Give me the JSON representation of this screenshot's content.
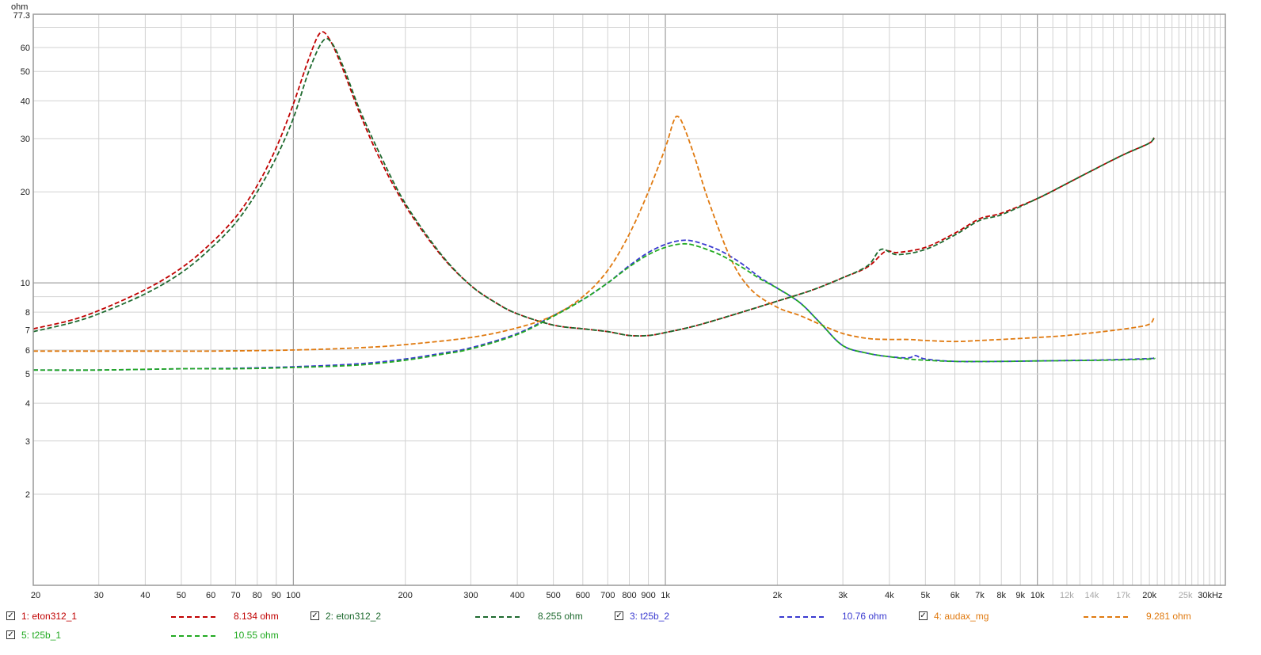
{
  "chart_data": {
    "type": "line",
    "title": "",
    "xlabel": "",
    "ylabel": "",
    "x_unit": "Hz",
    "y_unit": "ohm",
    "x_scale": "log",
    "y_scale": "log",
    "xlim": [
      20,
      32000
    ],
    "ylim": [
      1.0,
      77.3
    ],
    "grid": true,
    "legend_position": "bottom",
    "y_top_label": "77.3",
    "y_ticks": [
      {
        "v": 2,
        "label": "2"
      },
      {
        "v": 3,
        "label": "3"
      },
      {
        "v": 4,
        "label": "4"
      },
      {
        "v": 5,
        "label": "5"
      },
      {
        "v": 6,
        "label": "6"
      },
      {
        "v": 7,
        "label": "7"
      },
      {
        "v": 8,
        "label": "8"
      },
      {
        "v": 10,
        "label": "10"
      },
      {
        "v": 20,
        "label": "20"
      },
      {
        "v": 30,
        "label": "30"
      },
      {
        "v": 40,
        "label": "40"
      },
      {
        "v": 50,
        "label": "50"
      },
      {
        "v": 60,
        "label": "60"
      }
    ],
    "x_ticks": [
      {
        "v": 20,
        "label": "20",
        "minor": false
      },
      {
        "v": 30,
        "label": "30",
        "minor": false
      },
      {
        "v": 40,
        "label": "40",
        "minor": false
      },
      {
        "v": 50,
        "label": "50",
        "minor": false
      },
      {
        "v": 60,
        "label": "60",
        "minor": false
      },
      {
        "v": 70,
        "label": "70",
        "minor": false
      },
      {
        "v": 80,
        "label": "80",
        "minor": false
      },
      {
        "v": 90,
        "label": "90",
        "minor": false
      },
      {
        "v": 100,
        "label": "100",
        "minor": false
      },
      {
        "v": 200,
        "label": "200",
        "minor": false
      },
      {
        "v": 300,
        "label": "300",
        "minor": false
      },
      {
        "v": 400,
        "label": "400",
        "minor": false
      },
      {
        "v": 500,
        "label": "500",
        "minor": false
      },
      {
        "v": 600,
        "label": "600",
        "minor": false
      },
      {
        "v": 700,
        "label": "700",
        "minor": false
      },
      {
        "v": 800,
        "label": "800",
        "minor": false
      },
      {
        "v": 900,
        "label": "900",
        "minor": false
      },
      {
        "v": 1000,
        "label": "1k",
        "minor": false
      },
      {
        "v": 2000,
        "label": "2k",
        "minor": false
      },
      {
        "v": 3000,
        "label": "3k",
        "minor": false
      },
      {
        "v": 4000,
        "label": "4k",
        "minor": false
      },
      {
        "v": 5000,
        "label": "5k",
        "minor": false
      },
      {
        "v": 6000,
        "label": "6k",
        "minor": false
      },
      {
        "v": 7000,
        "label": "7k",
        "minor": false
      },
      {
        "v": 8000,
        "label": "8k",
        "minor": false
      },
      {
        "v": 9000,
        "label": "9k",
        "minor": false
      },
      {
        "v": 10000,
        "label": "10k",
        "minor": false
      },
      {
        "v": 12000,
        "label": "12k",
        "minor": true
      },
      {
        "v": 14000,
        "label": "14k",
        "minor": true
      },
      {
        "v": 17000,
        "label": "17k",
        "minor": true
      },
      {
        "v": 20000,
        "label": "20k",
        "minor": false
      },
      {
        "v": 25000,
        "label": "25k",
        "minor": true
      },
      {
        "v": 30000,
        "label": "30kHz",
        "minor": false
      }
    ],
    "series": [
      {
        "name": "1: eton312_1",
        "value_label": "8.134 ohm",
        "color": "#c00000",
        "points": [
          [
            20,
            7.05
          ],
          [
            25,
            7.5
          ],
          [
            30,
            8.1
          ],
          [
            40,
            9.5
          ],
          [
            50,
            11.2
          ],
          [
            60,
            13.5
          ],
          [
            70,
            16.5
          ],
          [
            80,
            21
          ],
          [
            90,
            28
          ],
          [
            100,
            39
          ],
          [
            110,
            55
          ],
          [
            118,
            67
          ],
          [
            125,
            64
          ],
          [
            135,
            52
          ],
          [
            150,
            37
          ],
          [
            170,
            26
          ],
          [
            200,
            18
          ],
          [
            250,
            12.3
          ],
          [
            300,
            9.8
          ],
          [
            350,
            8.6
          ],
          [
            400,
            7.9
          ],
          [
            500,
            7.25
          ],
          [
            600,
            7.05
          ],
          [
            700,
            6.9
          ],
          [
            800,
            6.7
          ],
          [
            900,
            6.7
          ],
          [
            1000,
            6.85
          ],
          [
            1200,
            7.2
          ],
          [
            1500,
            7.8
          ],
          [
            2000,
            8.7
          ],
          [
            2500,
            9.5
          ],
          [
            3000,
            10.4
          ],
          [
            3500,
            11.3
          ],
          [
            3900,
            12.7
          ],
          [
            4200,
            12.6
          ],
          [
            5000,
            13.1
          ],
          [
            6000,
            14.6
          ],
          [
            7000,
            16.3
          ],
          [
            8000,
            17
          ],
          [
            10000,
            19
          ],
          [
            12000,
            21.3
          ],
          [
            14000,
            23.5
          ],
          [
            17000,
            26.5
          ],
          [
            20000,
            29
          ],
          [
            20600,
            30.2
          ]
        ]
      },
      {
        "name": "2: eton312_2",
        "value_label": "8.255 ohm",
        "color": "#1e6a2f",
        "points": [
          [
            20,
            6.9
          ],
          [
            25,
            7.35
          ],
          [
            30,
            7.9
          ],
          [
            40,
            9.2
          ],
          [
            50,
            10.8
          ],
          [
            60,
            13
          ],
          [
            70,
            15.8
          ],
          [
            80,
            20
          ],
          [
            90,
            26
          ],
          [
            100,
            35
          ],
          [
            110,
            50
          ],
          [
            120,
            63
          ],
          [
            127,
            62
          ],
          [
            137,
            51
          ],
          [
            150,
            38
          ],
          [
            170,
            27
          ],
          [
            200,
            18.3
          ],
          [
            250,
            12.4
          ],
          [
            300,
            9.8
          ],
          [
            350,
            8.6
          ],
          [
            400,
            7.9
          ],
          [
            500,
            7.25
          ],
          [
            600,
            7.05
          ],
          [
            700,
            6.9
          ],
          [
            800,
            6.7
          ],
          [
            900,
            6.7
          ],
          [
            1000,
            6.85
          ],
          [
            1200,
            7.2
          ],
          [
            1500,
            7.8
          ],
          [
            2000,
            8.7
          ],
          [
            2500,
            9.5
          ],
          [
            3000,
            10.4
          ],
          [
            3500,
            11.4
          ],
          [
            3800,
            12.9
          ],
          [
            4200,
            12.4
          ],
          [
            5000,
            12.9
          ],
          [
            6000,
            14.4
          ],
          [
            7000,
            16.1
          ],
          [
            8000,
            16.8
          ],
          [
            10000,
            19
          ],
          [
            12000,
            21.3
          ],
          [
            14000,
            23.5
          ],
          [
            17000,
            26.5
          ],
          [
            20000,
            29
          ],
          [
            20600,
            30.5
          ]
        ]
      },
      {
        "name": "3: t25b_2",
        "value_label": "10.76 ohm",
        "color": "#3a3ad0",
        "points": [
          [
            20,
            5.15
          ],
          [
            30,
            5.15
          ],
          [
            50,
            5.2
          ],
          [
            70,
            5.22
          ],
          [
            100,
            5.28
          ],
          [
            150,
            5.4
          ],
          [
            200,
            5.6
          ],
          [
            250,
            5.85
          ],
          [
            300,
            6.1
          ],
          [
            400,
            6.8
          ],
          [
            500,
            7.8
          ],
          [
            600,
            8.8
          ],
          [
            700,
            10
          ],
          [
            800,
            11.4
          ],
          [
            900,
            12.6
          ],
          [
            1000,
            13.4
          ],
          [
            1100,
            13.8
          ],
          [
            1200,
            13.7
          ],
          [
            1400,
            12.8
          ],
          [
            1600,
            11.6
          ],
          [
            1800,
            10.4
          ],
          [
            2000,
            9.6
          ],
          [
            2300,
            8.6
          ],
          [
            2600,
            7.4
          ],
          [
            3000,
            6.2
          ],
          [
            3500,
            5.85
          ],
          [
            4000,
            5.7
          ],
          [
            4500,
            5.65
          ],
          [
            4700,
            5.75
          ],
          [
            5000,
            5.6
          ],
          [
            6000,
            5.5
          ],
          [
            8000,
            5.5
          ],
          [
            10000,
            5.52
          ],
          [
            15000,
            5.56
          ],
          [
            20000,
            5.62
          ],
          [
            20600,
            5.65
          ]
        ]
      },
      {
        "name": "4: audax_mg",
        "value_label": "9.281 ohm",
        "color": "#e07a10",
        "points": [
          [
            20,
            5.95
          ],
          [
            40,
            5.95
          ],
          [
            60,
            5.95
          ],
          [
            100,
            6.0
          ],
          [
            150,
            6.1
          ],
          [
            200,
            6.25
          ],
          [
            300,
            6.6
          ],
          [
            400,
            7.1
          ],
          [
            500,
            7.8
          ],
          [
            600,
            9
          ],
          [
            700,
            11
          ],
          [
            800,
            14.5
          ],
          [
            900,
            20
          ],
          [
            1000,
            28
          ],
          [
            1050,
            34
          ],
          [
            1080,
            35.5
          ],
          [
            1120,
            33
          ],
          [
            1200,
            26
          ],
          [
            1300,
            19
          ],
          [
            1500,
            12
          ],
          [
            1700,
            9.5
          ],
          [
            2000,
            8.3
          ],
          [
            2300,
            7.8
          ],
          [
            2600,
            7.3
          ],
          [
            3000,
            6.8
          ],
          [
            3500,
            6.55
          ],
          [
            4000,
            6.5
          ],
          [
            4500,
            6.5
          ],
          [
            5000,
            6.45
          ],
          [
            6000,
            6.4
          ],
          [
            7000,
            6.45
          ],
          [
            8000,
            6.5
          ],
          [
            10000,
            6.6
          ],
          [
            12000,
            6.7
          ],
          [
            15000,
            6.9
          ],
          [
            18000,
            7.1
          ],
          [
            20000,
            7.3
          ],
          [
            20600,
            7.7
          ]
        ]
      },
      {
        "name": "5: t25b_1",
        "value_label": "10.55 ohm",
        "color": "#22aa22",
        "points": [
          [
            20,
            5.15
          ],
          [
            30,
            5.15
          ],
          [
            50,
            5.2
          ],
          [
            70,
            5.2
          ],
          [
            100,
            5.25
          ],
          [
            150,
            5.35
          ],
          [
            200,
            5.55
          ],
          [
            250,
            5.8
          ],
          [
            300,
            6.05
          ],
          [
            400,
            6.75
          ],
          [
            500,
            7.75
          ],
          [
            600,
            8.8
          ],
          [
            700,
            10
          ],
          [
            800,
            11.3
          ],
          [
            900,
            12.4
          ],
          [
            1000,
            13.1
          ],
          [
            1100,
            13.45
          ],
          [
            1200,
            13.3
          ],
          [
            1400,
            12.4
          ],
          [
            1600,
            11.3
          ],
          [
            1800,
            10.3
          ],
          [
            2000,
            9.6
          ],
          [
            2300,
            8.6
          ],
          [
            2600,
            7.4
          ],
          [
            3000,
            6.2
          ],
          [
            3500,
            5.85
          ],
          [
            4000,
            5.7
          ],
          [
            4500,
            5.6
          ],
          [
            5000,
            5.55
          ],
          [
            6000,
            5.5
          ],
          [
            8000,
            5.5
          ],
          [
            10000,
            5.52
          ],
          [
            15000,
            5.55
          ],
          [
            20000,
            5.6
          ],
          [
            20600,
            5.65
          ]
        ]
      }
    ]
  }
}
